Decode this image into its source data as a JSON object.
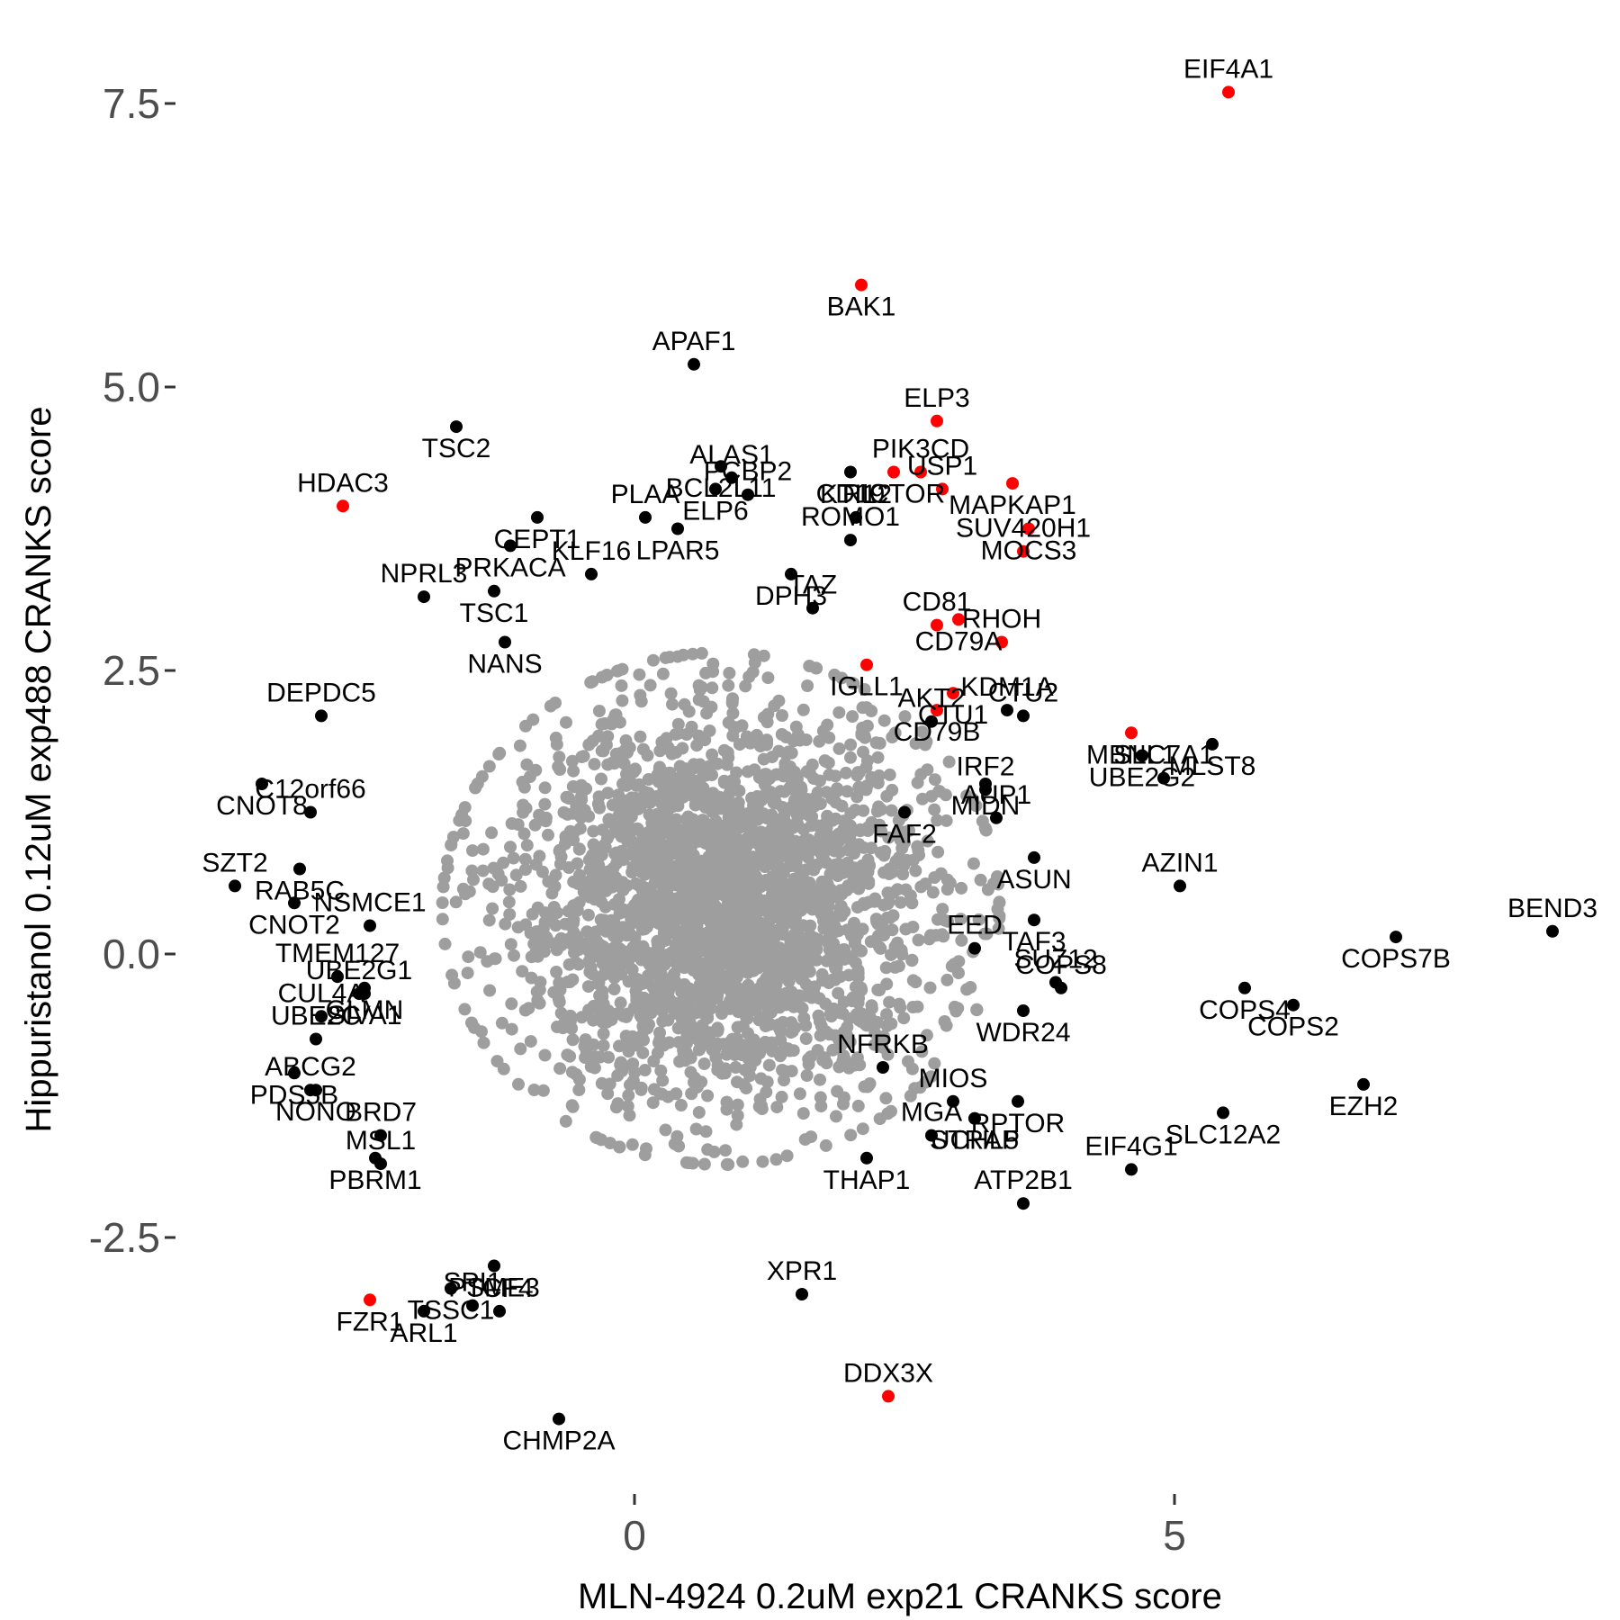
{
  "chart_data": {
    "type": "scatter",
    "xlabel": "MLN-4924 0.2uM exp21 CRANKS score",
    "ylabel": "Hippuristanol 0.12uM exp488 CRANKS score",
    "xlim": [
      -4.8,
      10.5
    ],
    "ylim": [
      -4.7,
      8.0
    ],
    "x_ticks": [
      0,
      5
    ],
    "x_tick_labels": [
      "0",
      "5"
    ],
    "y_ticks": [
      -2.5,
      0.0,
      2.5,
      5.0,
      7.5
    ],
    "y_tick_labels": [
      "-2.5",
      "0.0",
      "2.5",
      "5.0",
      "7.5"
    ],
    "grid": false,
    "colors": {
      "background_points": "#9e9e9e",
      "labeled_points": "#000000",
      "highlight_points": "#ff0000",
      "label_text": "#000000",
      "tick_text": "#4d4d4d"
    },
    "background_cloud": {
      "center": [
        0.8,
        0.4
      ],
      "spread": [
        1.6,
        1.4
      ],
      "count": 2600
    },
    "labeled_points": [
      {
        "gene": "EIF4A1",
        "x": 5.5,
        "y": 7.6,
        "color": "red"
      },
      {
        "gene": "BAK1",
        "x": 2.1,
        "y": 5.9,
        "color": "red"
      },
      {
        "gene": "APAF1",
        "x": 0.55,
        "y": 5.2,
        "color": "black"
      },
      {
        "gene": "TSC2",
        "x": -1.65,
        "y": 4.65,
        "color": "black"
      },
      {
        "gene": "HDAC3",
        "x": -2.7,
        "y": 3.95,
        "color": "red"
      },
      {
        "gene": "BCL2L11",
        "x": 0.8,
        "y": 4.3,
        "color": "black"
      },
      {
        "gene": "ALAS1",
        "x": 0.9,
        "y": 4.2,
        "color": "black"
      },
      {
        "gene": "CD19",
        "x": 2.0,
        "y": 4.25,
        "color": "black"
      },
      {
        "gene": "ELP3",
        "x": 2.8,
        "y": 4.7,
        "color": "red"
      },
      {
        "gene": "MAPKAP1",
        "x": 3.5,
        "y": 4.15,
        "color": "red"
      },
      {
        "gene": "PIK3CD",
        "x": 2.65,
        "y": 4.25,
        "color": "red"
      },
      {
        "gene": "RICTOR",
        "x": 2.4,
        "y": 4.25,
        "color": "red"
      },
      {
        "gene": "USP1",
        "x": 2.85,
        "y": 4.1,
        "color": "red"
      },
      {
        "gene": "MOCS3",
        "x": 3.65,
        "y": 3.75,
        "color": "red"
      },
      {
        "gene": "SUV420H1",
        "x": 3.6,
        "y": 3.55,
        "color": "red"
      },
      {
        "gene": "CEPT1",
        "x": -0.9,
        "y": 3.85,
        "color": "black"
      },
      {
        "gene": "PLAA",
        "x": 0.1,
        "y": 3.85,
        "color": "black"
      },
      {
        "gene": "ELP6",
        "x": 0.75,
        "y": 4.1,
        "color": "black"
      },
      {
        "gene": "PCBP2",
        "x": 1.05,
        "y": 4.05,
        "color": "black"
      },
      {
        "gene": "LPAR5",
        "x": 0.4,
        "y": 3.75,
        "color": "black"
      },
      {
        "gene": "KTI12",
        "x": 2.05,
        "y": 3.85,
        "color": "black"
      },
      {
        "gene": "PRKACA",
        "x": -1.15,
        "y": 3.6,
        "color": "black"
      },
      {
        "gene": "NPRL3",
        "x": -1.95,
        "y": 3.15,
        "color": "black"
      },
      {
        "gene": "TSC1",
        "x": -1.3,
        "y": 3.2,
        "color": "black"
      },
      {
        "gene": "KLF16",
        "x": -0.4,
        "y": 3.35,
        "color": "black"
      },
      {
        "gene": "DPH3",
        "x": 1.45,
        "y": 3.35,
        "color": "black"
      },
      {
        "gene": "ROMO1",
        "x": 2.0,
        "y": 3.65,
        "color": "black"
      },
      {
        "gene": "CD79A",
        "x": 3.0,
        "y": 2.95,
        "color": "red"
      },
      {
        "gene": "RHOH",
        "x": 3.4,
        "y": 2.75,
        "color": "red"
      },
      {
        "gene": "NANS",
        "x": -1.2,
        "y": 2.75,
        "color": "black"
      },
      {
        "gene": "TAZ",
        "x": 1.65,
        "y": 3.05,
        "color": "black"
      },
      {
        "gene": "IGLL1",
        "x": 2.15,
        "y": 2.55,
        "color": "red"
      },
      {
        "gene": "CD81",
        "x": 2.8,
        "y": 2.9,
        "color": "red"
      },
      {
        "gene": "CTU1",
        "x": 2.95,
        "y": 2.3,
        "color": "red"
      },
      {
        "gene": "KDM1A",
        "x": 3.45,
        "y": 2.15,
        "color": "black"
      },
      {
        "gene": "MBNL1",
        "x": 4.6,
        "y": 1.95,
        "color": "red"
      },
      {
        "gene": "CTU2",
        "x": 3.6,
        "y": 2.1,
        "color": "black"
      },
      {
        "gene": "MLST8",
        "x": 5.35,
        "y": 1.85,
        "color": "black"
      },
      {
        "gene": "DEPDC5",
        "x": -2.9,
        "y": 2.1,
        "color": "black"
      },
      {
        "gene": "CD79B",
        "x": 2.8,
        "y": 2.15,
        "color": "red"
      },
      {
        "gene": "AKT2",
        "x": 2.75,
        "y": 2.05,
        "color": "black"
      },
      {
        "gene": "MIDN",
        "x": 3.25,
        "y": 1.5,
        "color": "black"
      },
      {
        "gene": "IRF2",
        "x": 3.25,
        "y": 1.45,
        "color": "black"
      },
      {
        "gene": "UBE2G2",
        "x": 4.7,
        "y": 1.75,
        "color": "black"
      },
      {
        "gene": "SLC7A1",
        "x": 4.9,
        "y": 1.55,
        "color": "black"
      },
      {
        "gene": "CNOT8",
        "x": -3.45,
        "y": 1.5,
        "color": "black"
      },
      {
        "gene": "C12orf66",
        "x": -3.0,
        "y": 1.25,
        "color": "black"
      },
      {
        "gene": "FAF2",
        "x": 2.5,
        "y": 1.25,
        "color": "black"
      },
      {
        "gene": "AUP1",
        "x": 3.35,
        "y": 1.2,
        "color": "black"
      },
      {
        "gene": "RAB5C",
        "x": -3.1,
        "y": 0.75,
        "color": "black"
      },
      {
        "gene": "SZT2",
        "x": -3.7,
        "y": 0.6,
        "color": "black"
      },
      {
        "gene": "ASUN",
        "x": 3.7,
        "y": 0.85,
        "color": "black"
      },
      {
        "gene": "AZIN1",
        "x": 5.05,
        "y": 0.6,
        "color": "black"
      },
      {
        "gene": "CNOT2",
        "x": -3.15,
        "y": 0.45,
        "color": "black"
      },
      {
        "gene": "NSMCE1",
        "x": -2.45,
        "y": 0.25,
        "color": "black"
      },
      {
        "gene": "TAF3",
        "x": 3.7,
        "y": 0.3,
        "color": "black"
      },
      {
        "gene": "BEND3",
        "x": 8.5,
        "y": 0.2,
        "color": "black"
      },
      {
        "gene": "COPS7B",
        "x": 7.05,
        "y": 0.15,
        "color": "black"
      },
      {
        "gene": "TMEM127",
        "x": -2.75,
        "y": -0.2,
        "color": "black"
      },
      {
        "gene": "GLMN",
        "x": -2.5,
        "y": -0.3,
        "color": "black"
      },
      {
        "gene": "EED",
        "x": 3.15,
        "y": 0.05,
        "color": "black"
      },
      {
        "gene": "COPS4",
        "x": 5.65,
        "y": -0.3,
        "color": "black"
      },
      {
        "gene": "SUZ12",
        "x": 3.9,
        "y": -0.25,
        "color": "black"
      },
      {
        "gene": "COPS2",
        "x": 6.1,
        "y": -0.45,
        "color": "black"
      },
      {
        "gene": "CUL4A",
        "x": -2.9,
        "y": -0.55,
        "color": "black"
      },
      {
        "gene": "SIVA1",
        "x": -2.5,
        "y": -0.35,
        "color": "black"
      },
      {
        "gene": "UBE2G1",
        "x": -2.55,
        "y": -0.35,
        "color": "black"
      },
      {
        "gene": "WDR24",
        "x": 3.6,
        "y": -0.5,
        "color": "black"
      },
      {
        "gene": "COPS8",
        "x": 3.95,
        "y": -0.3,
        "color": "black"
      },
      {
        "gene": "PDS5B",
        "x": -3.15,
        "y": -1.05,
        "color": "black"
      },
      {
        "gene": "UBE2C",
        "x": -2.95,
        "y": -0.75,
        "color": "black"
      },
      {
        "gene": "EZH2",
        "x": 6.75,
        "y": -1.15,
        "color": "black"
      },
      {
        "gene": "NFRKB",
        "x": 2.3,
        "y": -1.0,
        "color": "black"
      },
      {
        "gene": "NONO",
        "x": -2.95,
        "y": -1.2,
        "color": "black"
      },
      {
        "gene": "MIOS",
        "x": 2.95,
        "y": -1.3,
        "color": "black"
      },
      {
        "gene": "RPTOR",
        "x": 3.55,
        "y": -1.3,
        "color": "black"
      },
      {
        "gene": "ABCG2",
        "x": -3.0,
        "y": -1.2,
        "color": "black"
      },
      {
        "gene": "SLC12A2",
        "x": 5.45,
        "y": -1.4,
        "color": "black"
      },
      {
        "gene": "BRD7",
        "x": -2.35,
        "y": -1.6,
        "color": "black"
      },
      {
        "gene": "STRAP",
        "x": 3.15,
        "y": -1.45,
        "color": "black"
      },
      {
        "gene": "MGA",
        "x": 2.75,
        "y": -1.6,
        "color": "black"
      },
      {
        "gene": "PBRM1",
        "x": -2.4,
        "y": -1.8,
        "color": "black"
      },
      {
        "gene": "MSL1",
        "x": -2.35,
        "y": -1.85,
        "color": "black"
      },
      {
        "gene": "THAP1",
        "x": 2.15,
        "y": -1.8,
        "color": "black"
      },
      {
        "gene": "EIF4G1",
        "x": 4.6,
        "y": -1.9,
        "color": "black"
      },
      {
        "gene": "UCHL5",
        "x": 3.15,
        "y": -1.45,
        "color": "black"
      },
      {
        "gene": "ATP2B1",
        "x": 3.6,
        "y": -2.2,
        "color": "black"
      },
      {
        "gene": "TSSC1",
        "x": -1.7,
        "y": -2.95,
        "color": "black"
      },
      {
        "gene": "SPI1",
        "x": -1.5,
        "y": -3.1,
        "color": "black"
      },
      {
        "gene": "PSME3",
        "x": -1.3,
        "y": -2.75,
        "color": "black"
      },
      {
        "gene": "XPR1",
        "x": 1.55,
        "y": -3.0,
        "color": "black"
      },
      {
        "gene": "FZR1",
        "x": -2.45,
        "y": -3.05,
        "color": "red"
      },
      {
        "gene": "TCF4",
        "x": -1.25,
        "y": -3.15,
        "color": "black"
      },
      {
        "gene": "ARL1",
        "x": -1.95,
        "y": -3.15,
        "color": "black"
      },
      {
        "gene": "DDX3X",
        "x": 2.35,
        "y": -3.9,
        "color": "red"
      },
      {
        "gene": "CHMP2A",
        "x": -0.7,
        "y": -4.1,
        "color": "black"
      }
    ]
  }
}
